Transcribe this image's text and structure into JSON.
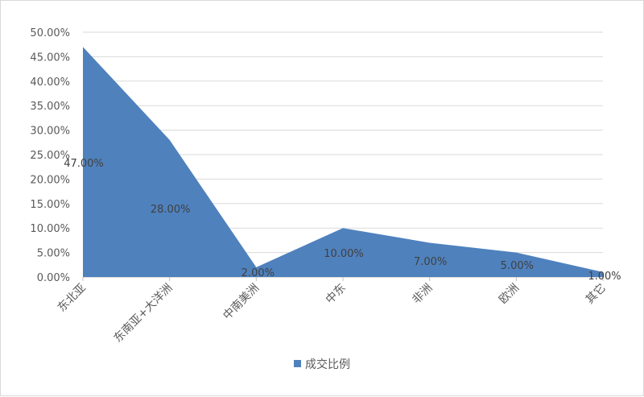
{
  "chart_data": {
    "type": "area",
    "title": "",
    "xlabel": "",
    "ylabel": "",
    "categories": [
      "东北亚",
      "东南亚+大洋洲",
      "中南美洲",
      "中东",
      "非洲",
      "欧洲",
      "其它"
    ],
    "series": [
      {
        "name": "成交比例",
        "values": [
          47,
          28,
          2,
          10,
          7,
          5,
          1
        ],
        "labels": [
          "47.00%",
          "28.00%",
          "2.00%",
          "10.00%",
          "7.00%",
          "5.00%",
          "1.00%"
        ],
        "color": "#4f81bd"
      }
    ],
    "ylim": [
      0,
      50
    ],
    "yticks": [
      0,
      5,
      10,
      15,
      20,
      25,
      30,
      35,
      40,
      45,
      50
    ],
    "ytick_labels": [
      "0.00%",
      "5.00%",
      "10.00%",
      "15.00%",
      "20.00%",
      "25.00%",
      "30.00%",
      "35.00%",
      "40.00%",
      "45.00%",
      "50.00%"
    ],
    "grid": true,
    "legend_position": "bottom",
    "colors": {
      "grid": "#d9d9d9",
      "axis": "#bfbfbf",
      "text": "#595959"
    }
  }
}
